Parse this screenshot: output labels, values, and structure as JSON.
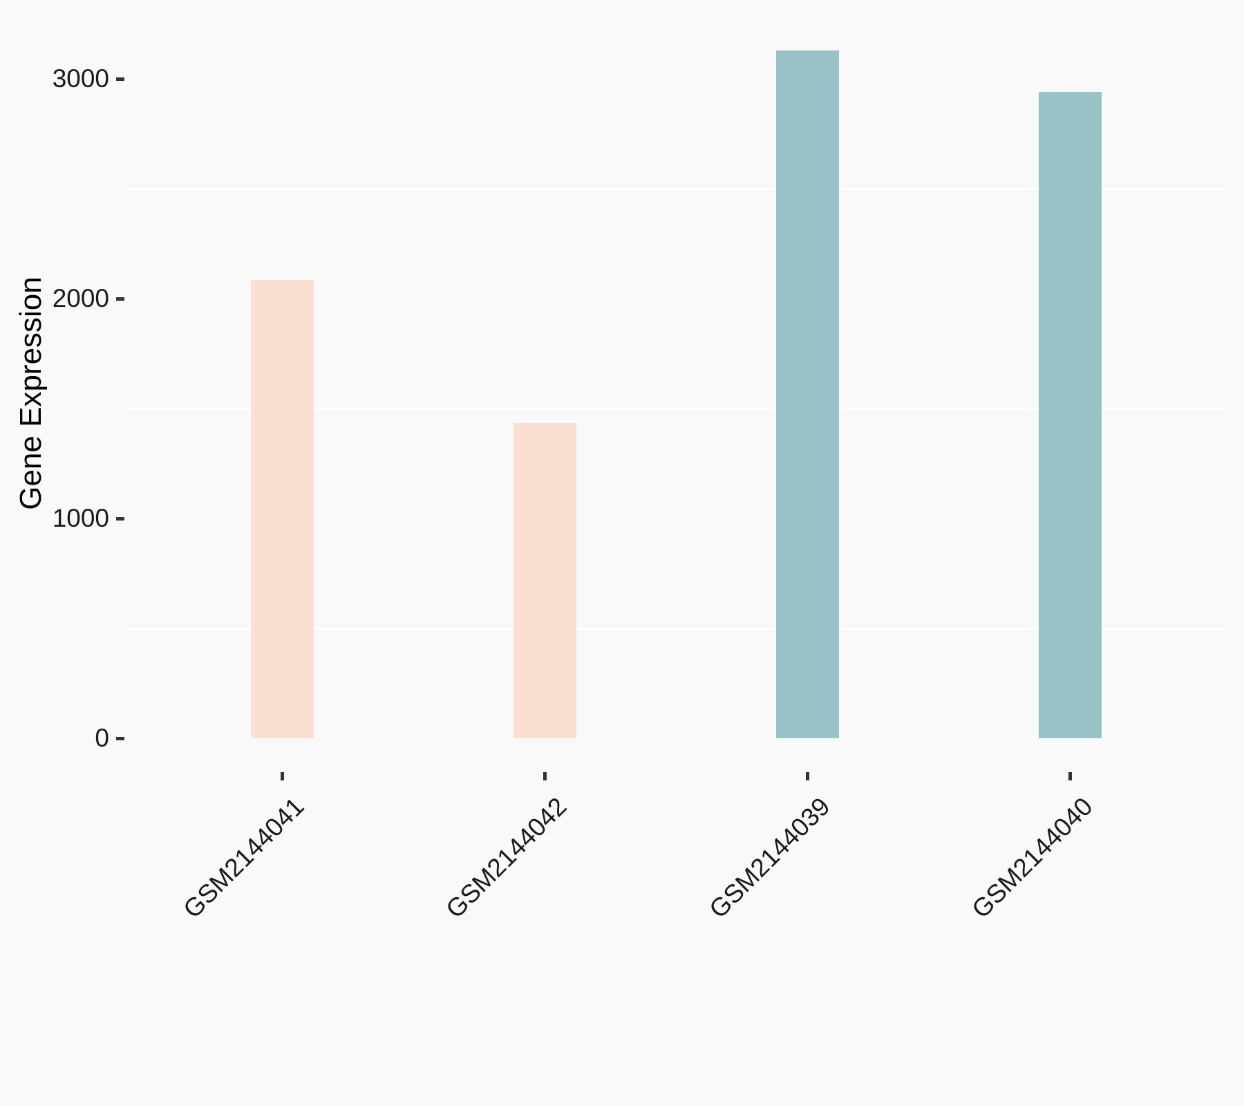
{
  "chart_data": {
    "type": "bar",
    "title": "",
    "xlabel": "",
    "ylabel": "Gene Expression",
    "categories": [
      "GSM2144041",
      "GSM2144042",
      "GSM2144039",
      "GSM2144040"
    ],
    "values": [
      2085,
      1435,
      3130,
      2940
    ],
    "groups": [
      "salmon",
      "salmon",
      "teal",
      "teal"
    ],
    "bar_colors": [
      "#fcdfd3",
      "#fcdfd3",
      "#99c2c6",
      "#99c2c6"
    ],
    "yticks": [
      0,
      1000,
      2000,
      3000
    ],
    "minor_gridlines": [
      500,
      1500,
      2500
    ],
    "ylim": [
      0,
      3150
    ],
    "grid": "minor gridlines only, white on light gray panel",
    "legend": "none",
    "colors": {
      "salmon": "#fcdfd3",
      "teal": "#99c2c6",
      "background": "#f9f9f9",
      "gridline": "#ffffff",
      "tick_mark": "#333333",
      "tick_label": "#1a1a1a",
      "axis_title": "#000000"
    }
  }
}
